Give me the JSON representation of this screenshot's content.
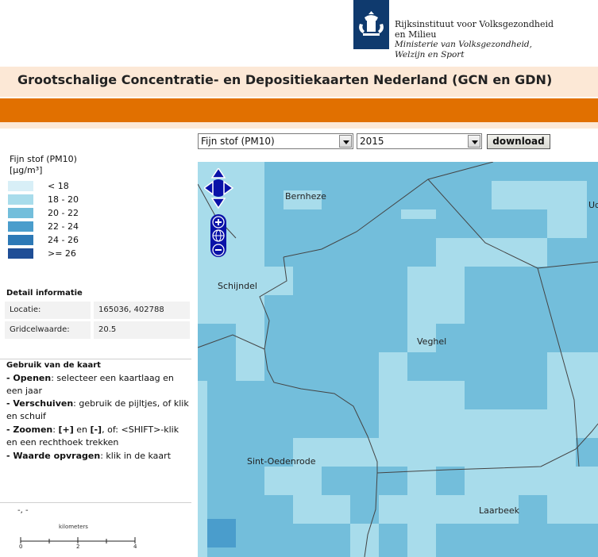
{
  "header": {
    "logo_line1": "Rijksinstituut voor Volksgezondheid",
    "logo_line2": "en Milieu",
    "ministry_line1": "Ministerie van Volksgezondheid,",
    "ministry_line2": "Welzijn en Sport",
    "page_title": "Grootschalige Concentratie- en Depositiekaarten Nederland (GCN en GDN)"
  },
  "controls": {
    "layer_selected": "Fijn stof (PM10)",
    "year_selected": "2015",
    "download_label": "download"
  },
  "legend": {
    "title_line1": "Fijn stof (PM10)",
    "title_line2": "[µg/m³]",
    "classes": [
      {
        "label": "< 18",
        "color": "#d8eff7"
      },
      {
        "label": "18 - 20",
        "color": "#a8dceb"
      },
      {
        "label": "20 - 22",
        "color": "#73bedb"
      },
      {
        "label": "22 - 24",
        "color": "#4a9dcc"
      },
      {
        "label": "24 - 26",
        "color": "#2d79b6"
      },
      {
        "label": ">= 26",
        "color": "#1f4e96"
      }
    ]
  },
  "detail": {
    "heading": "Detail informatie",
    "location_key": "Locatie:",
    "location_value": "165036, 402788",
    "gridcell_key": "Gridcelwaarde:",
    "gridcell_value": "20.5"
  },
  "help": {
    "heading": "Gebruik van de kaart",
    "open_bold": "- Openen",
    "open_text": ": selecteer een kaartlaag en een jaar",
    "pan_bold": "- Verschuiven",
    "pan_text": ": gebruik de pijltjes, of klik en schuif",
    "zoom_bold": "- Zoomen",
    "zoom_sep1": ": ",
    "zoom_plus": "[+]",
    "zoom_en": " en ",
    "zoom_minus": "[-]",
    "zoom_text": ", of: <SHIFT>-klik en een rechthoek trekken",
    "query_bold": "- Waarde opvragen",
    "query_text": ": klik in de kaart"
  },
  "footer": {
    "coords": "-, -",
    "scale_title": "kilometers",
    "scale_ticks": [
      "0",
      "2",
      "4"
    ]
  },
  "map": {
    "places": {
      "bernheze": "Bernheze",
      "uden": "Ud",
      "schijndel": "Schijndel",
      "veghel": "Veghel",
      "sint_oedenrode": "Sint-Oedenrode",
      "laarbeek": "Laarbeek"
    }
  }
}
